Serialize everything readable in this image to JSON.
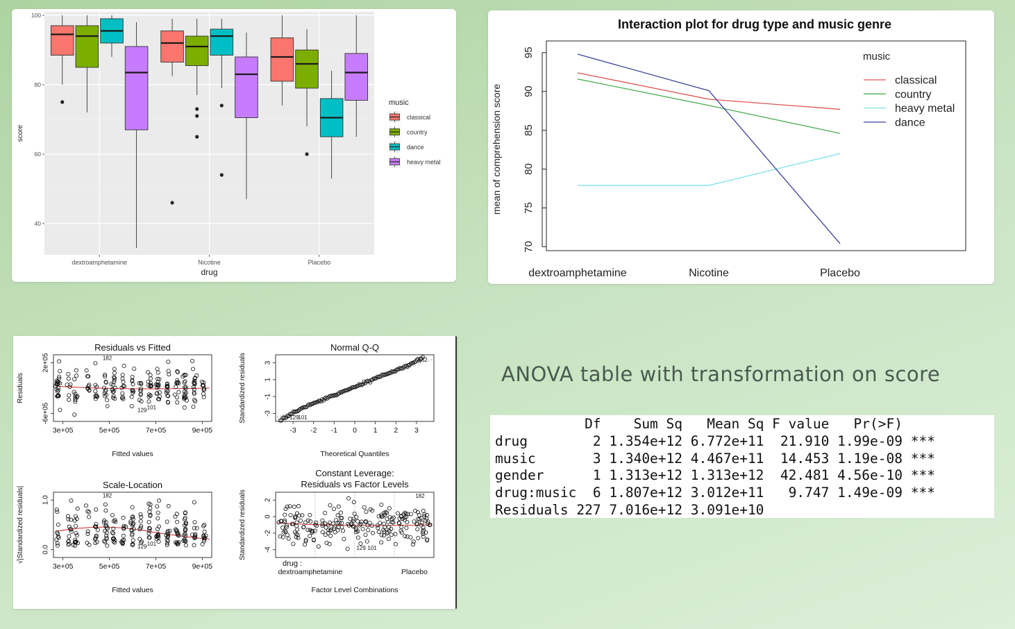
{
  "chart_data": [
    {
      "type": "boxplot",
      "xlabel": "drug",
      "ylabel": "score",
      "ylim": [
        31,
        101
      ],
      "yticks": [
        40,
        60,
        80,
        100
      ],
      "categories": [
        "dextroamphetamine",
        "Nicotine",
        "Placebo"
      ],
      "legend": {
        "title": "music",
        "placement": "right"
      },
      "series": [
        {
          "name": "classical",
          "color": "#f8766d",
          "boxes": [
            {
              "min": 80,
              "q1": 88.5,
              "median": 94.5,
              "q3": 97,
              "max": 100,
              "outliers": [
                75
              ]
            },
            {
              "min": 82.5,
              "q1": 86.5,
              "median": 92,
              "q3": 95.5,
              "max": 99,
              "outliers": [
                46
              ]
            },
            {
              "min": 74,
              "q1": 81,
              "median": 88,
              "q3": 93.5,
              "max": 100,
              "outliers": []
            }
          ]
        },
        {
          "name": "country",
          "color": "#7cae00",
          "boxes": [
            {
              "min": 72,
              "q1": 85,
              "median": 94,
              "q3": 97,
              "max": 100,
              "outliers": []
            },
            {
              "min": 77,
              "q1": 85.5,
              "median": 91,
              "q3": 94,
              "max": 99,
              "outliers": [
                73,
                71,
                65
              ]
            },
            {
              "min": 68,
              "q1": 79,
              "median": 86,
              "q3": 90,
              "max": 96,
              "outliers": [
                60
              ]
            }
          ]
        },
        {
          "name": "dance",
          "color": "#00bfc4",
          "boxes": [
            {
              "min": 88,
              "q1": 92,
              "median": 95.5,
              "q3": 99,
              "max": 100,
              "outliers": []
            },
            {
              "min": 79,
              "q1": 88.5,
              "median": 94,
              "q3": 96,
              "max": 99,
              "outliers": [
                74,
                54
              ]
            },
            {
              "min": 53,
              "q1": 65,
              "median": 70.5,
              "q3": 76,
              "max": 84,
              "outliers": []
            }
          ]
        },
        {
          "name": "heavy metal",
          "color": "#c77cff",
          "boxes": [
            {
              "min": 33,
              "q1": 67,
              "median": 83.5,
              "q3": 91,
              "max": 98,
              "outliers": []
            },
            {
              "min": 47,
              "q1": 70.5,
              "median": 83,
              "q3": 88,
              "max": 95,
              "outliers": []
            },
            {
              "min": 65,
              "q1": 75.5,
              "median": 83.5,
              "q3": 89,
              "max": 100,
              "outliers": []
            }
          ]
        }
      ]
    },
    {
      "type": "line",
      "title": "Interaction plot for drug type and music genre",
      "ylabel": "mean of comprehension score",
      "xlabel": "",
      "categories": [
        "dextroamphetamine",
        "Nicotine",
        "Placebo"
      ],
      "ylim": [
        69.5,
        96.5
      ],
      "yticks": [
        70,
        75,
        80,
        85,
        90,
        95
      ],
      "legend": {
        "title": "music",
        "placement": "top-right"
      },
      "series": [
        {
          "name": "classical",
          "color": "#df5353",
          "values": [
            92.4,
            89.0,
            87.7
          ]
        },
        {
          "name": "country",
          "color": "#4caf50",
          "values": [
            91.6,
            88.2,
            84.6
          ]
        },
        {
          "name": "heavy metal",
          "color": "#7fe3ea",
          "values": [
            77.9,
            77.9,
            82.0
          ]
        },
        {
          "name": "dance",
          "color": "#3b3f9a",
          "values": [
            94.8,
            90.1,
            70.4
          ]
        }
      ]
    },
    {
      "type": "scatter",
      "panels": [
        {
          "title": "Residuals vs Fitted",
          "xlabel": "Fitted values",
          "ylabel": "Residuals",
          "xticks": [
            "3e+05",
            "5e+05",
            "7e+05",
            "9e+05"
          ],
          "yticks": [
            "-6e+05",
            "2e+05"
          ],
          "labels": [
            "182",
            "129",
            "101"
          ]
        },
        {
          "title": "Normal Q-Q",
          "xlabel": "Theoretical Quantiles",
          "ylabel": "Standardized residuals",
          "xticks": [
            "-3",
            "-2",
            "-1",
            "0",
            "1",
            "2",
            "3"
          ],
          "yticks": [
            "-3",
            "-1",
            "1",
            "3"
          ],
          "labels": [
            "182",
            "129",
            "101"
          ]
        },
        {
          "title": "Scale-Location",
          "xlabel": "Fitted values",
          "ylabel": "√|Standardized residuals|",
          "xticks": [
            "3e+05",
            "5e+05",
            "7e+05",
            "9e+05"
          ],
          "yticks": [
            "0.0",
            "1.0"
          ],
          "labels": [
            "182",
            "129",
            "101"
          ]
        },
        {
          "title": "Constant Leverage:",
          "title2": "Residuals vs Factor Levels",
          "xlabel": "Factor Level Combinations",
          "ylabel": "Standardized residuals",
          "xticks": [
            "drug :",
            "dextroamphetamine",
            "Placebo"
          ],
          "yticks": [
            "-4",
            "-2",
            "0",
            "2"
          ],
          "labels": [
            "182",
            "129",
            "101"
          ]
        }
      ]
    }
  ],
  "anova": {
    "heading": "ANOVA table with transformation on score",
    "lines": [
      "           Df    Sum Sq   Mean Sq F value   Pr(>F)    ",
      "drug        2 1.354e+12 6.772e+11  21.910 1.99e-09 ***",
      "music       3 1.340e+12 4.467e+11  14.453 1.19e-08 ***",
      "gender      1 1.313e+12 1.313e+12  42.481 4.56e-10 ***",
      "drug:music  6 1.807e+12 3.012e+11   9.747 1.49e-09 ***",
      "Residuals 227 7.016e+12 3.091e+10"
    ]
  }
}
